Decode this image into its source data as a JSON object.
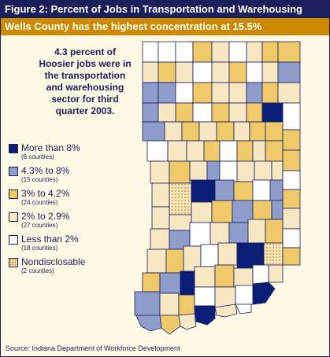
{
  "title": "Figure 2: Percent of Jobs in Transportation and Warehousing",
  "subtitle": "Wells County has the highest concentration at 15.5%",
  "stat_text": [
    "4.3 percent of",
    "Hoosier jobs were in",
    "the transportation",
    "and warehousing",
    "sector for third",
    "quarter 2003."
  ],
  "legend": [
    {
      "label": "More than 8%",
      "count": "(6  counties)",
      "color": "#0a1e78"
    },
    {
      "label": "4.3% to 8%",
      "count": "(15 counties)",
      "color": "#8f9dcc"
    },
    {
      "label": "3% to 4.2%",
      "count": "(24 counties)",
      "color": "#f0c96a"
    },
    {
      "label": "2% to 2.9%",
      "count": "(27 counties)",
      "color": "#f7e7c2"
    },
    {
      "label": "Less than 2%",
      "count": "(18 counties)",
      "color": "#ffffff"
    },
    {
      "label": "Nondisclosable",
      "count": "(2 counties)",
      "color": "#f7e7c2"
    }
  ],
  "source": "Source: Indiana Department of Workforce Development",
  "colors": {
    "navy": "#1a1f5c",
    "gold": "#cc8a00",
    "background": "#fff9e6"
  }
}
